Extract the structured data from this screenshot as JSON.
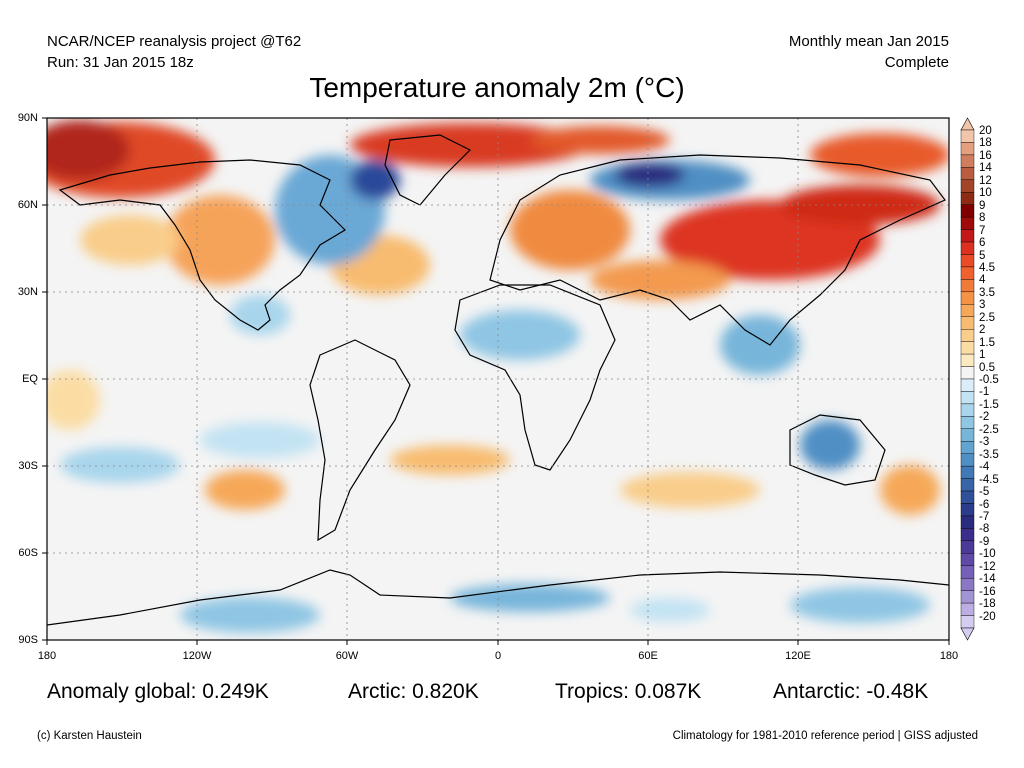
{
  "header": {
    "left_line1": "NCAR/NCEP reanalysis project @T62",
    "left_line2": "Run: 31 Jan 2015 18z",
    "right_line1": "Monthly mean Jan 2015",
    "right_line2": "Complete"
  },
  "title": "Temperature anomaly 2m (°C)",
  "lat_labels": [
    "90N",
    "60N",
    "30N",
    "EQ",
    "30S",
    "60S",
    "90S"
  ],
  "lon_labels": [
    "180",
    "120W",
    "60W",
    "0",
    "60E",
    "120E",
    "180"
  ],
  "colorbar": {
    "labels": [
      "20",
      "18",
      "16",
      "14",
      "12",
      "10",
      "9",
      "8",
      "7",
      "6",
      "5",
      "4.5",
      "4",
      "3.5",
      "3",
      "2.5",
      "2",
      "1.5",
      "1",
      "0.5",
      "-0.5",
      "-1",
      "-1.5",
      "-2",
      "-2.5",
      "-3",
      "-3.5",
      "-4",
      "-4.5",
      "-5",
      "-6",
      "-7",
      "-8",
      "-9",
      "-10",
      "-12",
      "-14",
      "-16",
      "-18",
      "-20"
    ],
    "colors": [
      "#f2c4a8",
      "#e4a07e",
      "#d07d5d",
      "#b95c3f",
      "#a34328",
      "#8e2b14",
      "#800000",
      "#a00a0a",
      "#c41818",
      "#dd3020",
      "#ea4a26",
      "#ef6230",
      "#f27a38",
      "#f49245",
      "#f6a858",
      "#f8bc70",
      "#f9cd8a",
      "#fbdda4",
      "#fde9bf",
      "#f4f4f4",
      "#d9eef8",
      "#c2e3f3",
      "#a8d5ec",
      "#8fc6e4",
      "#77b5da",
      "#62a3d0",
      "#4f8fc4",
      "#4178b6",
      "#3864a8",
      "#30509a",
      "#2c3c8c",
      "#2a2a7e",
      "#3b2d8a",
      "#4d3a98",
      "#5f4aa6",
      "#7460b6",
      "#8a78c6",
      "#a293d5",
      "#bcaee3",
      "#d6cbf0"
    ]
  },
  "stats": {
    "global": "Anomaly global: 0.249K",
    "arctic": "Arctic: 0.820K",
    "tropics": "Tropics: 0.087K",
    "antarctic": "Antarctic: -0.48K"
  },
  "footer": {
    "left": "(c) Karsten Haustein",
    "right": "Climatology for 1981-2010 reference period | GISS adjusted"
  }
}
